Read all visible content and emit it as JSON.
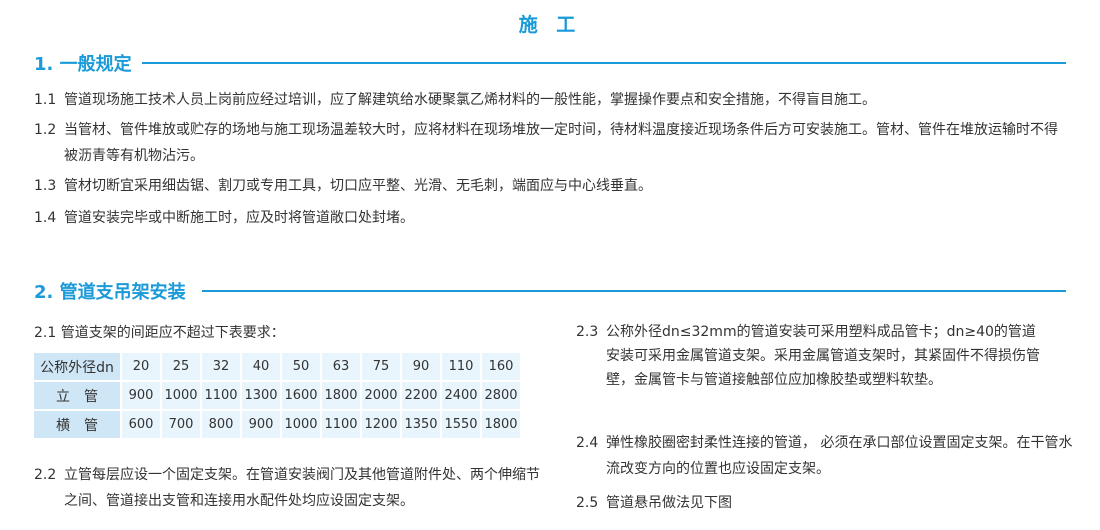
{
  "title": "施 工",
  "section1": {
    "heading": "1. 一般规定",
    "items": [
      {
        "num": "1.1",
        "text": "管道现场施工技术人员上岗前应经过培训，应了解建筑给水硬聚氯乙烯材料的一般性能，掌握操作要点和安全措施，不得盲目施工。"
      },
      {
        "num": "1.2",
        "text": "当管材、管件堆放或贮存的场地与施工现场温差较大时，应将材料在现场堆放一定时间，待材料温度接近现场条件后方可安装施工。管材、管件在堆放运输时不得被沥青等有机物沾污。"
      },
      {
        "num": "1.3",
        "text": "管材切断宜采用细齿锯、割刀或专用工具，切口应平整、光滑、无毛刺，端面应与中心线垂直。"
      },
      {
        "num": "1.4",
        "text": "管道安装完毕或中断施工时，应及时将管道敞口处封堵。"
      }
    ]
  },
  "section2": {
    "heading": "2. 管道支吊架安装",
    "item21": "2.1 管道支架的间距应不超过下表要求：",
    "table": {
      "rows": [
        {
          "label": "公称外径dn",
          "values": [
            "20",
            "25",
            "32",
            "40",
            "50",
            "63",
            "75",
            "90",
            "110",
            "160"
          ]
        },
        {
          "label": "立　管",
          "values": [
            "900",
            "1000",
            "1100",
            "1300",
            "1600",
            "1800",
            "2000",
            "2200",
            "2400",
            "2800"
          ]
        },
        {
          "label": "横　管",
          "values": [
            "600",
            "700",
            "800",
            "900",
            "1000",
            "1100",
            "1200",
            "1350",
            "1550",
            "1800"
          ]
        }
      ]
    },
    "item22": {
      "num": "2.2",
      "text": "立管每层应设一个固定支架。在管道安装阀门及其他管道附件处、两个伸缩节之间、管道接出支管和连接用水配件处均应设固定支架。"
    },
    "item23": {
      "num": "2.3",
      "text": "公称外径dn≤32mm的管道安装可采用塑料成品管卡；dn≥40的管道安装可采用金属管道支架。采用金属管道支架时，其紧固件不得损伤管壁，金属管卡与管道接触部位应加橡胶垫或塑料软垫。"
    },
    "item24": {
      "num": "2.4",
      "text": "弹性橡胶圈密封柔性连接的管道， 必须在承口部位设置固定支架。在干管水流改变方向的位置也应设固定支架。"
    },
    "item25": {
      "num": "2.5",
      "text": "管道悬吊做法见下图"
    }
  },
  "colors": {
    "accent": "#1a9ad8",
    "table_header": "#cfe6f7",
    "table_cell": "#e8f5fc"
  }
}
